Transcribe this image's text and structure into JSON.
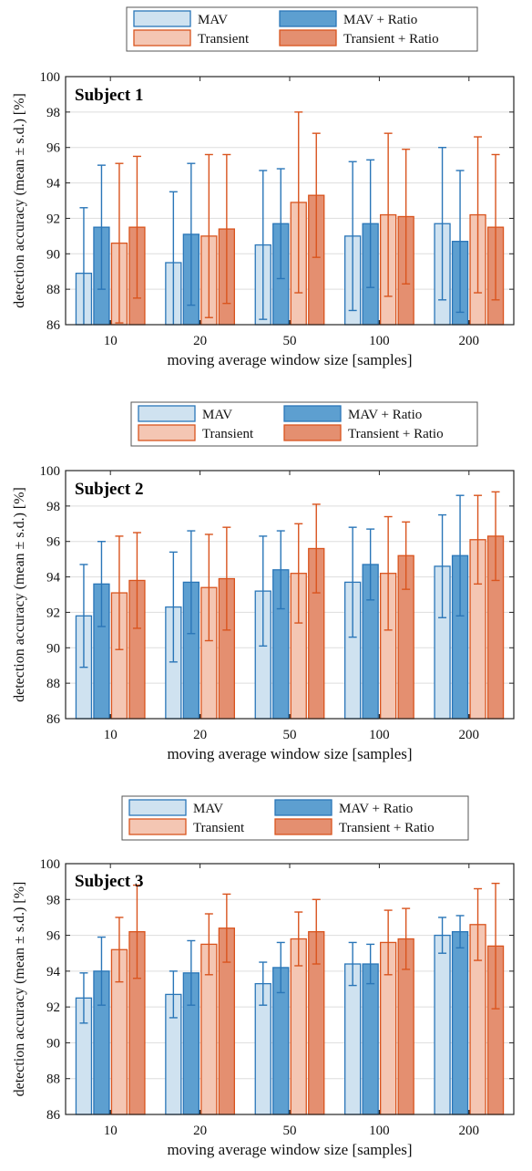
{
  "chart_data": [
    {
      "type": "bar",
      "title": "Subject 1",
      "xlabel": "moving average window size [samples]",
      "ylabel": "detection accuracy (mean ± s.d.) [%]",
      "categories": [
        "10",
        "20",
        "50",
        "100",
        "200"
      ],
      "ylim": [
        86,
        100
      ],
      "yticks": [
        "86",
        "88",
        "90",
        "92",
        "94",
        "96",
        "98",
        "100"
      ],
      "grid": "horizontal",
      "legend_position": "top",
      "series": [
        {
          "name": "MAV",
          "values": [
            88.9,
            89.5,
            90.5,
            91.0,
            91.7
          ],
          "sd": [
            3.7,
            4.0,
            4.2,
            4.2,
            4.3
          ]
        },
        {
          "name": "MAV + Ratio",
          "values": [
            91.5,
            91.1,
            91.7,
            91.7,
            90.7
          ],
          "sd": [
            3.5,
            4.0,
            3.1,
            3.6,
            4.0
          ]
        },
        {
          "name": "Transient",
          "values": [
            90.6,
            91.0,
            92.9,
            92.2,
            92.2
          ],
          "sd": [
            4.5,
            4.6,
            5.1,
            4.6,
            4.4
          ]
        },
        {
          "name": "Transient + Ratio",
          "values": [
            91.5,
            91.4,
            93.3,
            92.1,
            91.5
          ],
          "sd": [
            4.0,
            4.2,
            3.5,
            3.8,
            4.1
          ]
        }
      ]
    },
    {
      "type": "bar",
      "title": "Subject 2",
      "xlabel": "moving average window size [samples]",
      "ylabel": "detection accuracy (mean ± s.d.) [%]",
      "categories": [
        "10",
        "20",
        "50",
        "100",
        "200"
      ],
      "ylim": [
        86,
        100
      ],
      "yticks": [
        "86",
        "88",
        "90",
        "92",
        "94",
        "96",
        "98",
        "100"
      ],
      "grid": "horizontal",
      "legend_position": "top",
      "series": [
        {
          "name": "MAV",
          "values": [
            91.8,
            92.3,
            93.2,
            93.7,
            94.6
          ],
          "sd": [
            2.9,
            3.1,
            3.1,
            3.1,
            2.9
          ]
        },
        {
          "name": "MAV + Ratio",
          "values": [
            93.6,
            93.7,
            94.4,
            94.7,
            95.2
          ],
          "sd": [
            2.4,
            2.9,
            2.2,
            2.0,
            3.4
          ]
        },
        {
          "name": "Transient",
          "values": [
            93.1,
            93.4,
            94.2,
            94.2,
            96.1
          ],
          "sd": [
            3.2,
            3.0,
            2.8,
            3.2,
            2.5
          ]
        },
        {
          "name": "Transient + Ratio",
          "values": [
            93.8,
            93.9,
            95.6,
            95.2,
            96.3
          ],
          "sd": [
            2.7,
            2.9,
            2.5,
            1.9,
            2.5
          ]
        }
      ]
    },
    {
      "type": "bar",
      "title": "Subject 3",
      "xlabel": "moving average window size [samples]",
      "ylabel": "detection accuracy (mean ± s.d.) [%]",
      "categories": [
        "10",
        "20",
        "50",
        "100",
        "200"
      ],
      "ylim": [
        86,
        100
      ],
      "yticks": [
        "86",
        "88",
        "90",
        "92",
        "94",
        "96",
        "98",
        "100"
      ],
      "grid": "horizontal",
      "legend_position": "top",
      "series": [
        {
          "name": "MAV",
          "values": [
            92.5,
            92.7,
            93.3,
            94.4,
            96.0
          ],
          "sd": [
            1.4,
            1.3,
            1.2,
            1.2,
            1.0
          ]
        },
        {
          "name": "MAV + Ratio",
          "values": [
            94.0,
            93.9,
            94.2,
            94.4,
            96.2
          ],
          "sd": [
            1.9,
            1.8,
            1.4,
            1.1,
            0.9
          ]
        },
        {
          "name": "Transient",
          "values": [
            95.2,
            95.5,
            95.8,
            95.6,
            96.6
          ],
          "sd": [
            1.8,
            1.7,
            1.5,
            1.8,
            2.0
          ]
        },
        {
          "name": "Transient + Ratio",
          "values": [
            96.2,
            96.4,
            96.2,
            95.8,
            95.4
          ],
          "sd": [
            2.6,
            1.9,
            1.8,
            1.7,
            3.5
          ]
        }
      ]
    }
  ],
  "colors": {
    "mav_fill": "#cfe2f0",
    "mav_ratio_fill": "#5d9fd0",
    "transient_fill": "#f4c6b3",
    "transient_ratio_fill": "#e48f70",
    "blue_edge": "#2a76b8",
    "orange_edge": "#d9541e",
    "grid": "#dddddd",
    "axis": "#262626"
  }
}
